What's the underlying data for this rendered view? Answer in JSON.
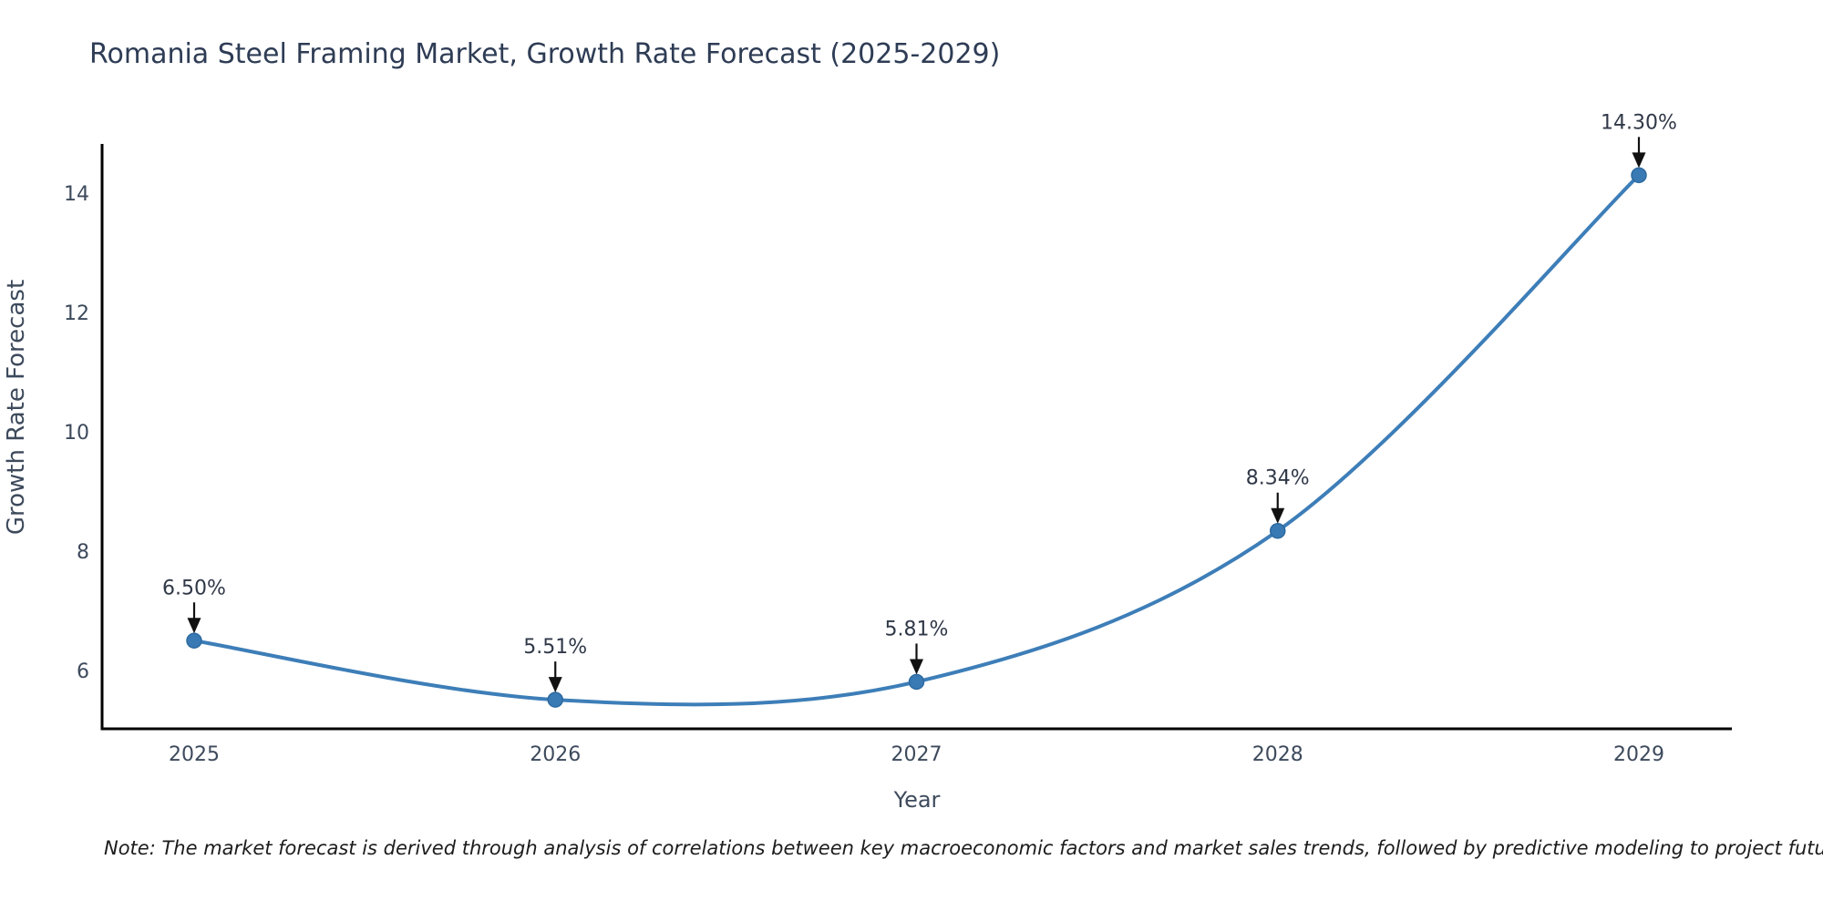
{
  "title": "Romania Steel Framing Market, Growth Rate Forecast (2025-2029)",
  "footnote": "Note: The market forecast is derived through analysis of correlations between key macroeconomic factors and market sales trends, followed by predictive modeling to project future sales.",
  "colors": {
    "line": "#3d7eb8",
    "marker_fill": "#3a7ab4",
    "marker_edge": "#2c6aa0",
    "axis_spine": "#000000",
    "title_text": "#2e3c55",
    "tick_text": "#3d4a5c",
    "annotation_text": "#303848",
    "arrow": "#111111",
    "background": "#ffffff"
  },
  "chart_data": {
    "type": "line",
    "x": [
      "2025",
      "2026",
      "2027",
      "2028",
      "2029"
    ],
    "series": [
      {
        "name": "Growth Rate Forecast",
        "values": [
          6.5,
          5.51,
          5.81,
          8.34,
          14.3
        ]
      }
    ],
    "point_labels": [
      "6.50%",
      "5.51%",
      "5.81%",
      "8.34%",
      "14.30%"
    ],
    "title": "Romania Steel Framing Market, Growth Rate Forecast (2025-2029)",
    "xlabel": "Year",
    "ylabel": "Growth Rate Forecast",
    "yticks": [
      6,
      8,
      10,
      12,
      14
    ],
    "ylim": [
      5.0,
      14.8
    ],
    "xlim_categories_padding": "quarter-step each side",
    "line_shape": "spline",
    "grid": false,
    "legend": false,
    "annotations": "black down arrows from percentage labels to each data point"
  }
}
